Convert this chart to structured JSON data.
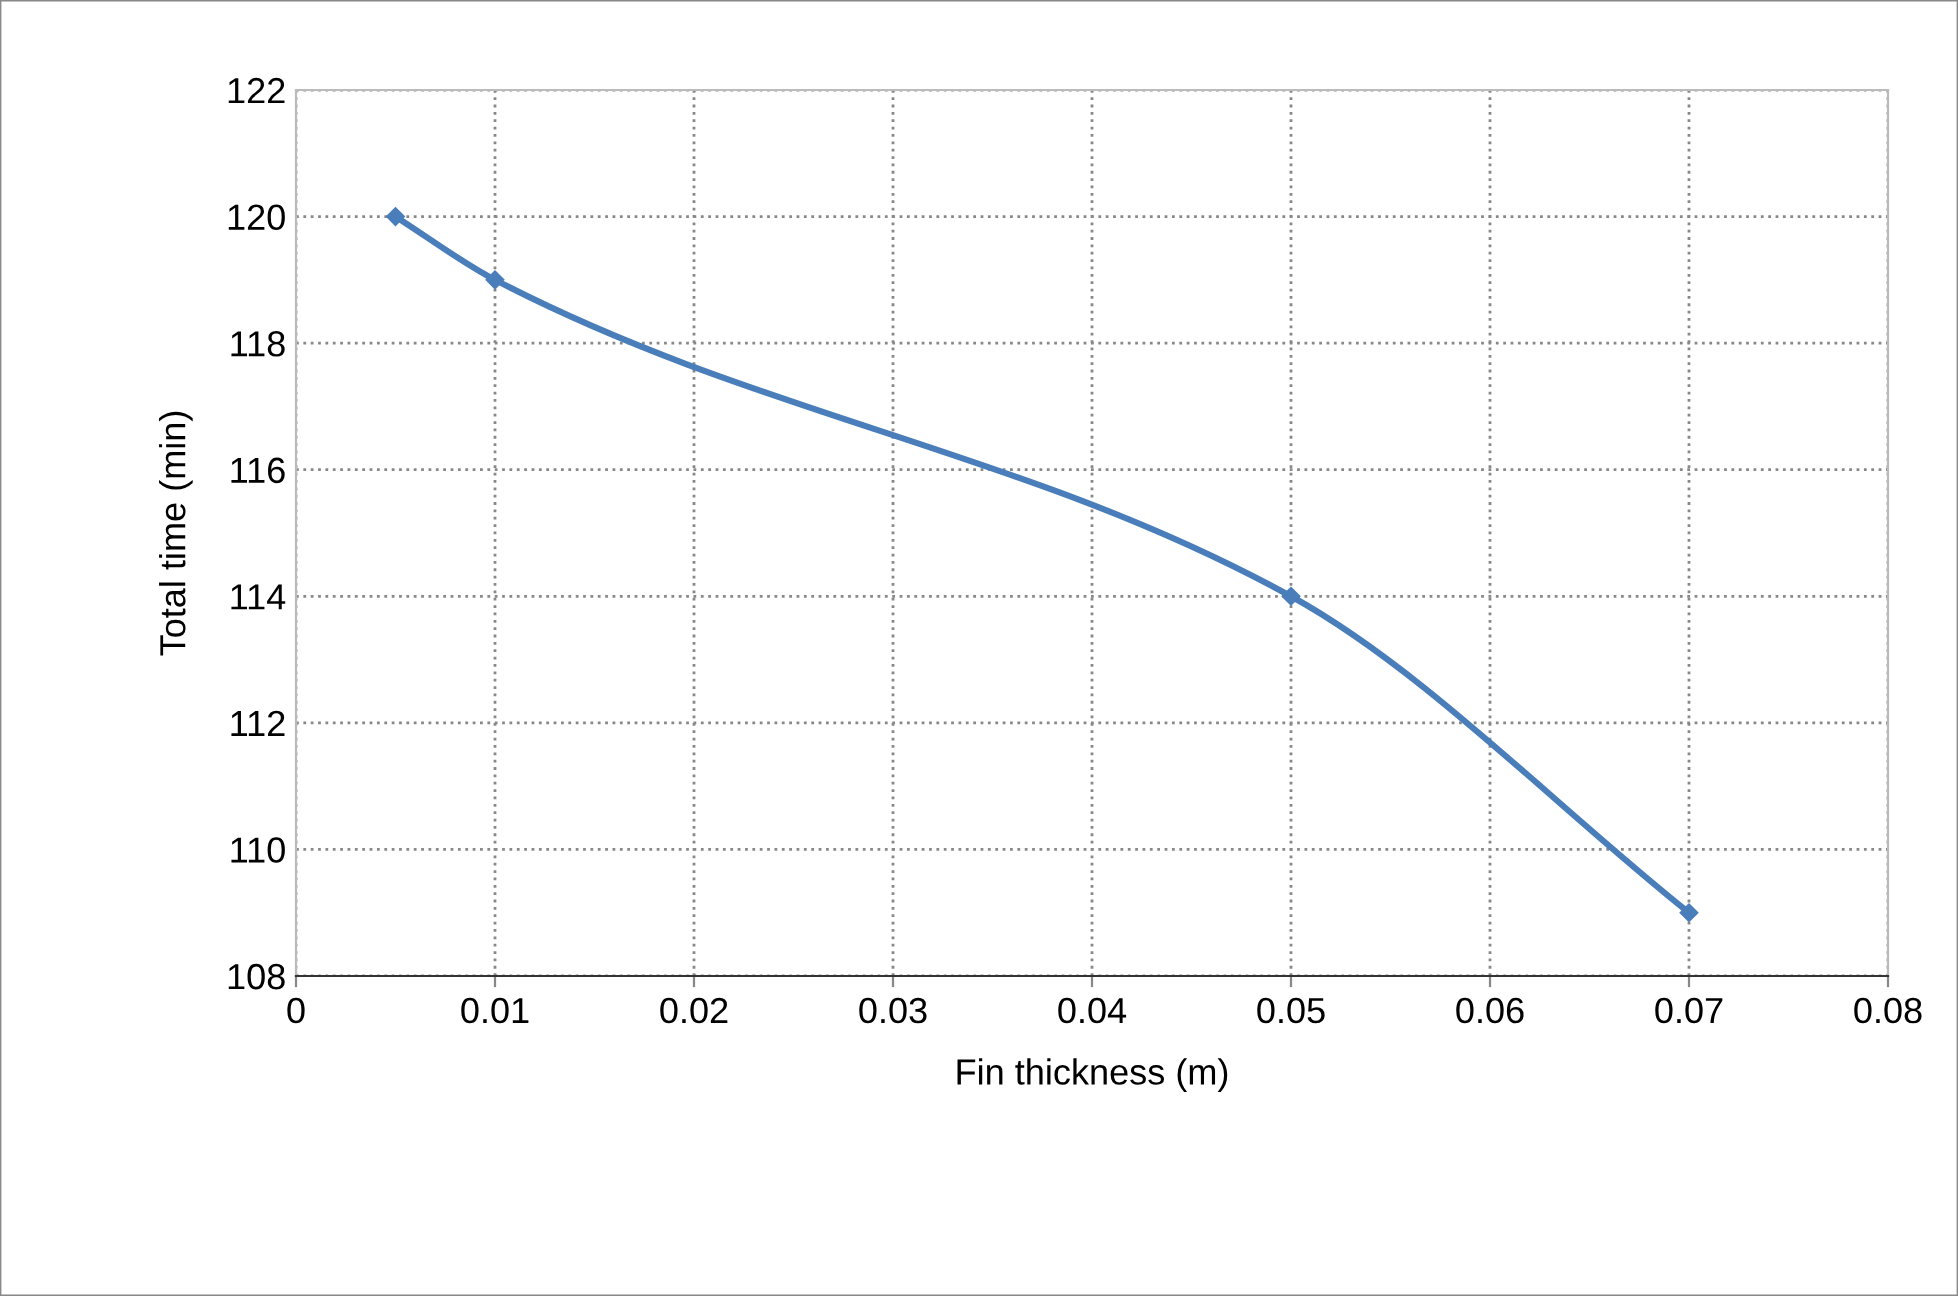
{
  "chart_data": {
    "type": "line",
    "xlabel": "Fin thickness (m)",
    "ylabel": "Total time (min)",
    "x": [
      0.005,
      0.01,
      0.05,
      0.07
    ],
    "series": [
      {
        "color": "#4a7ebb",
        "values": [
          120,
          119,
          114,
          109
        ]
      }
    ],
    "xlim": [
      0,
      0.08
    ],
    "xticks": [
      0,
      0.01,
      0.02,
      0.03,
      0.04,
      0.05,
      0.06,
      0.07,
      0.08
    ],
    "ylim": [
      108,
      122
    ],
    "yticks": [
      108,
      110,
      112,
      114,
      116,
      118,
      120,
      122
    ],
    "grid": true,
    "marker": "diamond",
    "line_style": "solid",
    "legend": false
  }
}
